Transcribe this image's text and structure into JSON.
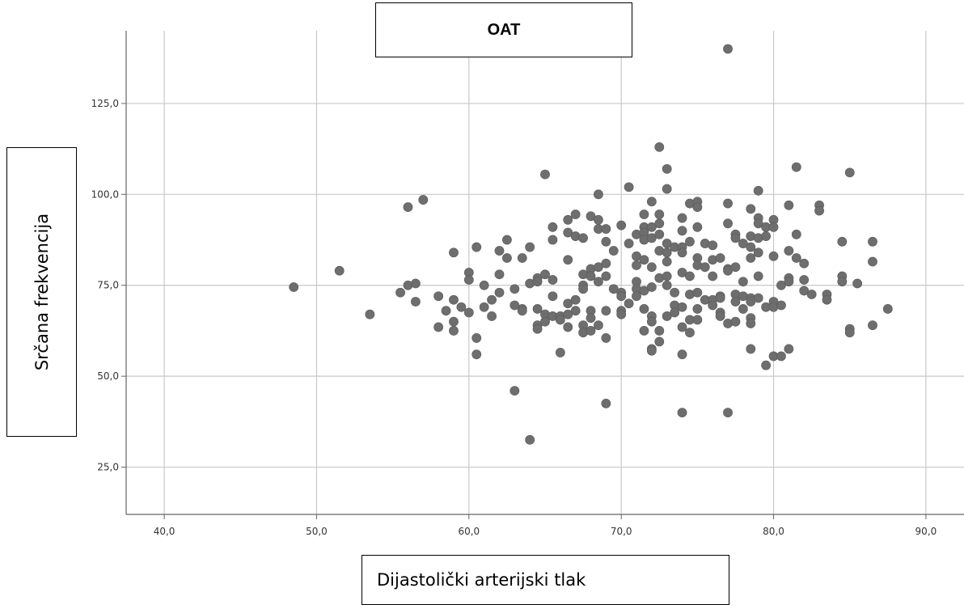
{
  "chart_data": {
    "type": "scatter",
    "title": "OAT",
    "xlabel": "Dijastolički arterijski tlak",
    "ylabel": "Srčana frekvencija",
    "xlim": [
      37.5,
      92.5
    ],
    "ylim": [
      12,
      145
    ],
    "x_ticks": [
      "40,0",
      "50,0",
      "60,0",
      "70,0",
      "80,0",
      "90,0"
    ],
    "y_ticks": [
      "25,0",
      "50,0",
      "75,0",
      "100,0",
      "125,0"
    ],
    "x_tick_values": [
      40,
      50,
      60,
      70,
      80,
      90
    ],
    "y_tick_values": [
      25,
      50,
      75,
      100,
      125
    ],
    "grid": true,
    "point_color": "#6e6e6e",
    "points": [
      [
        48.5,
        74.5
      ],
      [
        51.5,
        79
      ],
      [
        53.5,
        67
      ],
      [
        55.5,
        73
      ],
      [
        56,
        75
      ],
      [
        56,
        96.5
      ],
      [
        56.5,
        70.5
      ],
      [
        56.5,
        75.5
      ],
      [
        57,
        98.5
      ],
      [
        58,
        72
      ],
      [
        58,
        63.5
      ],
      [
        58.5,
        68
      ],
      [
        59,
        84
      ],
      [
        59,
        71
      ],
      [
        59,
        65
      ],
      [
        59,
        62.5
      ],
      [
        59.5,
        69
      ],
      [
        60,
        78.5
      ],
      [
        60,
        76.5
      ],
      [
        60,
        67.5
      ],
      [
        60.5,
        85.5
      ],
      [
        60.5,
        60.5
      ],
      [
        60.5,
        56
      ],
      [
        61,
        75
      ],
      [
        61,
        69
      ],
      [
        61.5,
        71
      ],
      [
        61.5,
        66.5
      ],
      [
        62,
        84.5
      ],
      [
        62,
        78
      ],
      [
        62,
        73
      ],
      [
        62.5,
        87.5
      ],
      [
        62.5,
        82.5
      ],
      [
        63,
        74
      ],
      [
        63,
        69.5
      ],
      [
        63,
        46
      ],
      [
        63.5,
        82.5
      ],
      [
        63.5,
        68.5
      ],
      [
        63.5,
        68
      ],
      [
        64,
        85.5
      ],
      [
        64,
        75.5
      ],
      [
        64,
        32.5
      ],
      [
        64.5,
        77
      ],
      [
        64.5,
        76
      ],
      [
        64.5,
        68.5
      ],
      [
        64.5,
        64
      ],
      [
        64.5,
        63
      ],
      [
        65,
        105.5
      ],
      [
        65,
        78
      ],
      [
        65,
        67
      ],
      [
        65,
        65
      ],
      [
        65.5,
        91
      ],
      [
        65.5,
        87.5
      ],
      [
        65.5,
        76.5
      ],
      [
        65.5,
        72
      ],
      [
        65.5,
        66.5
      ],
      [
        66,
        66.5
      ],
      [
        66,
        56.5
      ],
      [
        66,
        65.5
      ],
      [
        66.5,
        93
      ],
      [
        66.5,
        89.5
      ],
      [
        66.5,
        82
      ],
      [
        66.5,
        70
      ],
      [
        66.5,
        67
      ],
      [
        66.5,
        63.5
      ],
      [
        67,
        94.5
      ],
      [
        67,
        88.5
      ],
      [
        67,
        71
      ],
      [
        67,
        68
      ],
      [
        67.5,
        88
      ],
      [
        67.5,
        78
      ],
      [
        67.5,
        75
      ],
      [
        67.5,
        74
      ],
      [
        67.5,
        64
      ],
      [
        67.5,
        62
      ],
      [
        68,
        94
      ],
      [
        68,
        79.5
      ],
      [
        68,
        77.5
      ],
      [
        68,
        68
      ],
      [
        68,
        66
      ],
      [
        68,
        62.5
      ],
      [
        68.5,
        100
      ],
      [
        68.5,
        93
      ],
      [
        68.5,
        90.5
      ],
      [
        68.5,
        80
      ],
      [
        68.5,
        76
      ],
      [
        68.5,
        64
      ],
      [
        69,
        90.5
      ],
      [
        69,
        87
      ],
      [
        69,
        81
      ],
      [
        69,
        77.5
      ],
      [
        69,
        68
      ],
      [
        69,
        60.5
      ],
      [
        69,
        42.5
      ],
      [
        69.5,
        84.5
      ],
      [
        69.5,
        74
      ],
      [
        70,
        91.5
      ],
      [
        70,
        73
      ],
      [
        70,
        72
      ],
      [
        70,
        68
      ],
      [
        70,
        67
      ],
      [
        70.5,
        102
      ],
      [
        70.5,
        86.5
      ],
      [
        70.5,
        70
      ],
      [
        71,
        89
      ],
      [
        71,
        83
      ],
      [
        71,
        80.5
      ],
      [
        71,
        76
      ],
      [
        71,
        74
      ],
      [
        71,
        72
      ],
      [
        71.5,
        94.5
      ],
      [
        71.5,
        91
      ],
      [
        71.5,
        89.5
      ],
      [
        71.5,
        87.5
      ],
      [
        71.5,
        82
      ],
      [
        71.5,
        73.5
      ],
      [
        71.5,
        68.5
      ],
      [
        71.5,
        62.5
      ],
      [
        72,
        98
      ],
      [
        72,
        91
      ],
      [
        72,
        88
      ],
      [
        72,
        80
      ],
      [
        72,
        74.5
      ],
      [
        72,
        66.5
      ],
      [
        72,
        65
      ],
      [
        72,
        57.5
      ],
      [
        72,
        57
      ],
      [
        72.5,
        113
      ],
      [
        72.5,
        94.5
      ],
      [
        72.5,
        92
      ],
      [
        72.5,
        89
      ],
      [
        72.5,
        84.5
      ],
      [
        72.5,
        77
      ],
      [
        72.5,
        62.5
      ],
      [
        72.5,
        59.5
      ],
      [
        73,
        107
      ],
      [
        73,
        101.5
      ],
      [
        73,
        86.5
      ],
      [
        73,
        84
      ],
      [
        73,
        81.5
      ],
      [
        73,
        77.5
      ],
      [
        73,
        75
      ],
      [
        73,
        66.5
      ],
      [
        73.5,
        85.5
      ],
      [
        73.5,
        73
      ],
      [
        73.5,
        69.5
      ],
      [
        73.5,
        67.5
      ],
      [
        74,
        93.5
      ],
      [
        74,
        90
      ],
      [
        74,
        85.5
      ],
      [
        74,
        84
      ],
      [
        74,
        78.5
      ],
      [
        74,
        69
      ],
      [
        74,
        63.5
      ],
      [
        74,
        56
      ],
      [
        74,
        40
      ],
      [
        74.5,
        97.5
      ],
      [
        74.5,
        87
      ],
      [
        74.5,
        77.5
      ],
      [
        74.5,
        72.5
      ],
      [
        74.5,
        65.5
      ],
      [
        74.5,
        62
      ],
      [
        75,
        98
      ],
      [
        75,
        96.5
      ],
      [
        75,
        91
      ],
      [
        75,
        82.5
      ],
      [
        75,
        80.5
      ],
      [
        75,
        73
      ],
      [
        75,
        68.5
      ],
      [
        75,
        65.5
      ],
      [
        75.5,
        86.5
      ],
      [
        75.5,
        80
      ],
      [
        75.5,
        71
      ],
      [
        76,
        86
      ],
      [
        76,
        82
      ],
      [
        76,
        77.5
      ],
      [
        76,
        71
      ],
      [
        76,
        69.5
      ],
      [
        76.5,
        82.5
      ],
      [
        76.5,
        72
      ],
      [
        76.5,
        71.5
      ],
      [
        76.5,
        67.5
      ],
      [
        76.5,
        66.5
      ],
      [
        77,
        140
      ],
      [
        77,
        97.5
      ],
      [
        77,
        92
      ],
      [
        77,
        79.5
      ],
      [
        77,
        79
      ],
      [
        77,
        64.5
      ],
      [
        77,
        40
      ],
      [
        77.5,
        89
      ],
      [
        77.5,
        88
      ],
      [
        77.5,
        80
      ],
      [
        77.5,
        72.5
      ],
      [
        77.5,
        70.5
      ],
      [
        77.5,
        65
      ],
      [
        78,
        86.5
      ],
      [
        78,
        76
      ],
      [
        78,
        72
      ],
      [
        78,
        68.5
      ],
      [
        78.5,
        96
      ],
      [
        78.5,
        88.5
      ],
      [
        78.5,
        85.5
      ],
      [
        78.5,
        82.5
      ],
      [
        78.5,
        71.5
      ],
      [
        78.5,
        70.5
      ],
      [
        78.5,
        66
      ],
      [
        78.5,
        64.5
      ],
      [
        78.5,
        57.5
      ],
      [
        79,
        101
      ],
      [
        79,
        93.5
      ],
      [
        79,
        92
      ],
      [
        79,
        88
      ],
      [
        79,
        84
      ],
      [
        79,
        77.5
      ],
      [
        79,
        71.5
      ],
      [
        79.5,
        91
      ],
      [
        79.5,
        88.5
      ],
      [
        79.5,
        69
      ],
      [
        79.5,
        53
      ],
      [
        80,
        93
      ],
      [
        80,
        91
      ],
      [
        80,
        83
      ],
      [
        80,
        70.5
      ],
      [
        80,
        69
      ],
      [
        80,
        55.5
      ],
      [
        80.5,
        75
      ],
      [
        80.5,
        69.5
      ],
      [
        80.5,
        55.5
      ],
      [
        81,
        97
      ],
      [
        81,
        84.5
      ],
      [
        81,
        77
      ],
      [
        81,
        76
      ],
      [
        81,
        57.5
      ],
      [
        81.5,
        107.5
      ],
      [
        81.5,
        89
      ],
      [
        81.5,
        82.5
      ],
      [
        82,
        81
      ],
      [
        82,
        76.5
      ],
      [
        82,
        73.5
      ],
      [
        82.5,
        72.5
      ],
      [
        83,
        97
      ],
      [
        83,
        95.5
      ],
      [
        83.5,
        72.5
      ],
      [
        83.5,
        71
      ],
      [
        84.5,
        87
      ],
      [
        84.5,
        77.5
      ],
      [
        84.5,
        76
      ],
      [
        85,
        106
      ],
      [
        85,
        63
      ],
      [
        85,
        62
      ],
      [
        85.5,
        75.5
      ],
      [
        86.5,
        87
      ],
      [
        86.5,
        81.5
      ],
      [
        86.5,
        64
      ],
      [
        87.5,
        68.5
      ]
    ]
  }
}
